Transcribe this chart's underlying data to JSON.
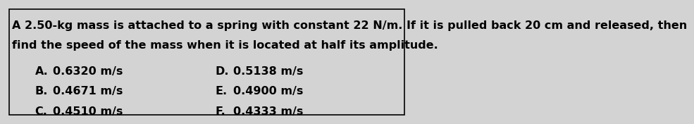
{
  "question_line1": "A 2.50-kg mass is attached to a spring with constant 22 N/m. If it is pulled back 20 cm and released, then",
  "question_line2": "find the speed of the mass when it is located at half its amplitude.",
  "options_left": [
    {
      "label": "A.",
      "value": "0.6320 m/s"
    },
    {
      "label": "B.",
      "value": "0.4671 m/s"
    },
    {
      "label": "C.",
      "value": "0.4510 m/s"
    }
  ],
  "options_right": [
    {
      "label": "D.",
      "value": "0.5138 m/s"
    },
    {
      "label": "E.",
      "value": "0.4900 m/s"
    },
    {
      "label": "F.",
      "value": "0.4333 m/s"
    }
  ],
  "background_color": "#d3d3d3",
  "border_color": "#000000",
  "text_color": "#000000",
  "font_size_question": 11.5,
  "font_size_options": 11.5
}
